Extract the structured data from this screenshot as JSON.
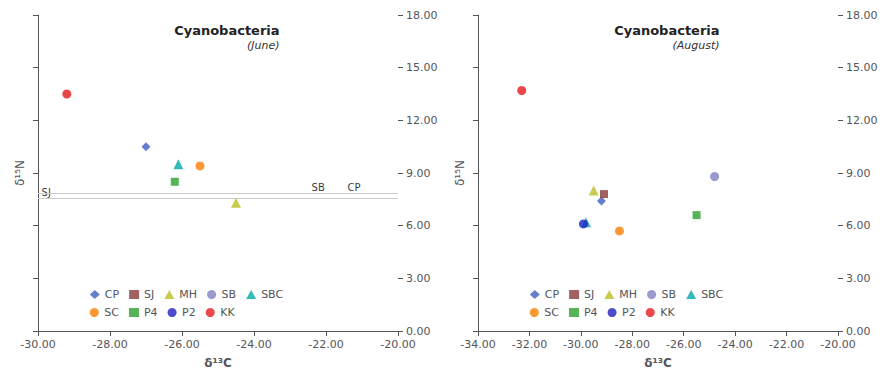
{
  "chart_data": [
    {
      "type": "scatter",
      "title": "Cyanobacteria",
      "subtitle": "(June)",
      "xlabel": "δ¹³C",
      "ylabel": "δ¹⁵N",
      "xlim": [
        -30.0,
        -20.0
      ],
      "ylim": [
        0.0,
        18.0
      ],
      "xticks": [
        {
          "value": -30,
          "label": "-30.00"
        },
        {
          "value": -28,
          "label": "-28.00"
        },
        {
          "value": -26,
          "label": "-26.00"
        },
        {
          "value": -24,
          "label": "-24.00"
        },
        {
          "value": -22,
          "label": "-22.00"
        },
        {
          "value": -20,
          "label": "-20.00"
        }
      ],
      "yticks": [
        {
          "value": 0,
          "label": "0.00"
        },
        {
          "value": 3,
          "label": "3.00"
        },
        {
          "value": 6,
          "label": "6.00"
        },
        {
          "value": 9,
          "label": "9.00"
        },
        {
          "value": 12,
          "label": "12.00"
        },
        {
          "value": 15,
          "label": "15.00"
        },
        {
          "value": 18,
          "label": "18.00"
        }
      ],
      "grid": false,
      "legend": "lower left",
      "reference_lines": [
        7.55,
        7.85
      ],
      "annotations": [
        {
          "text": "SJ",
          "x": -29.9,
          "y": 7.6
        },
        {
          "text": "SB",
          "x": -22.4,
          "y": 7.9
        },
        {
          "text": "CP",
          "x": -21.4,
          "y": 7.9
        }
      ],
      "series": [
        {
          "name": "CP",
          "color": "#3f5fbf",
          "marker": "diamond",
          "x": [
            -27.0
          ],
          "y": [
            10.5
          ]
        },
        {
          "name": "SJ",
          "color": "#8b3a3a",
          "marker": "square",
          "x": [],
          "y": []
        },
        {
          "name": "MH",
          "color": "#bcbd22",
          "marker": "triangle",
          "x": [
            -24.5
          ],
          "y": [
            7.3
          ]
        },
        {
          "name": "SB",
          "color": "#7f7fbf",
          "marker": "circle",
          "x": [],
          "y": []
        },
        {
          "name": "SBC",
          "color": "#00aaaa",
          "marker": "triangle",
          "x": [
            -26.1
          ],
          "y": [
            9.5
          ]
        },
        {
          "name": "SC",
          "color": "#f97f00",
          "marker": "circle",
          "x": [
            -25.5
          ],
          "y": [
            9.4
          ]
        },
        {
          "name": "P4",
          "color": "#2ca02c",
          "marker": "square",
          "x": [
            -26.2
          ],
          "y": [
            8.5
          ]
        },
        {
          "name": "P2",
          "color": "#1f1fbf",
          "marker": "circle",
          "x": [],
          "y": []
        },
        {
          "name": "KK",
          "color": "#e41a1c",
          "marker": "circle",
          "x": [
            -29.2
          ],
          "y": [
            13.5
          ]
        }
      ]
    },
    {
      "type": "scatter",
      "title": "Cyanobacteria",
      "subtitle": "(August)",
      "xlabel": "δ¹³C",
      "ylabel": "δ¹⁵N",
      "xlim": [
        -34.0,
        -20.0
      ],
      "ylim": [
        0.0,
        18.0
      ],
      "xticks": [
        {
          "value": -34,
          "label": "-34.00"
        },
        {
          "value": -32,
          "label": "-32.00"
        },
        {
          "value": -30,
          "label": "-30.00"
        },
        {
          "value": -28,
          "label": "-28.00"
        },
        {
          "value": -26,
          "label": "-26.00"
        },
        {
          "value": -24,
          "label": "-24.00"
        },
        {
          "value": -22,
          "label": "-22.00"
        },
        {
          "value": -20,
          "label": "-20.00"
        }
      ],
      "yticks": [
        {
          "value": 0,
          "label": "0.00"
        },
        {
          "value": 3,
          "label": "3.00"
        },
        {
          "value": 6,
          "label": "6.00"
        },
        {
          "value": 9,
          "label": "9.00"
        },
        {
          "value": 12,
          "label": "12.00"
        },
        {
          "value": 15,
          "label": "15.00"
        },
        {
          "value": 18,
          "label": "18.00"
        }
      ],
      "grid": false,
      "legend": "lower left",
      "series": [
        {
          "name": "CP",
          "color": "#3f5fbf",
          "marker": "diamond",
          "x": [
            -29.2
          ],
          "y": [
            7.4
          ]
        },
        {
          "name": "SJ",
          "color": "#8b3a3a",
          "marker": "square",
          "x": [
            -29.1
          ],
          "y": [
            7.8
          ]
        },
        {
          "name": "MH",
          "color": "#bcbd22",
          "marker": "triangle",
          "x": [
            -29.5
          ],
          "y": [
            8.0
          ]
        },
        {
          "name": "SB",
          "color": "#7f7fbf",
          "marker": "circle",
          "x": [
            -24.8
          ],
          "y": [
            8.8
          ]
        },
        {
          "name": "SBC",
          "color": "#00aaaa",
          "marker": "triangle",
          "x": [
            -29.8
          ],
          "y": [
            6.2
          ]
        },
        {
          "name": "SC",
          "color": "#f97f00",
          "marker": "circle",
          "x": [
            -28.5
          ],
          "y": [
            5.7
          ]
        },
        {
          "name": "P4",
          "color": "#2ca02c",
          "marker": "square",
          "x": [
            -25.5
          ],
          "y": [
            6.6
          ]
        },
        {
          "name": "P2",
          "color": "#1f1fbf",
          "marker": "circle",
          "x": [
            -29.9
          ],
          "y": [
            6.1
          ]
        },
        {
          "name": "KK",
          "color": "#e41a1c",
          "marker": "circle",
          "x": [
            -32.3
          ],
          "y": [
            13.7
          ]
        }
      ]
    }
  ]
}
